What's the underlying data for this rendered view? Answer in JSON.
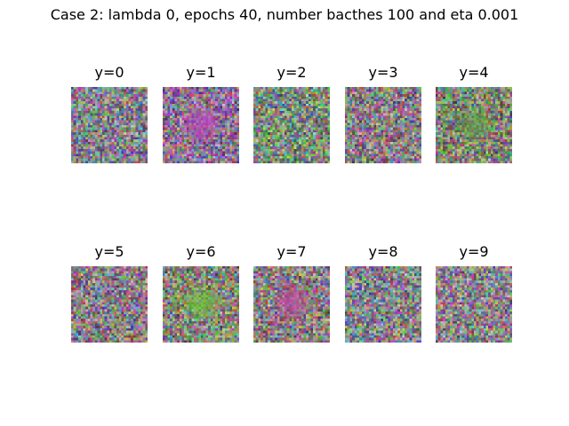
{
  "figure": {
    "title": "Case 2: lambda 0, epochs 40, number bacthes 100 and eta 0.001"
  },
  "panels": [
    {
      "label": "y=0",
      "tint": "#8a8a9a",
      "blob": null
    },
    {
      "label": "y=1",
      "tint": "#a060b0",
      "blob": "#c040c0"
    },
    {
      "label": "y=2",
      "tint": "#70a070",
      "blob": null
    },
    {
      "label": "y=3",
      "tint": "#9a8090",
      "blob": null
    },
    {
      "label": "y=4",
      "tint": "#708860",
      "blob": "#60a040"
    },
    {
      "label": "y=5",
      "tint": "#9a8090",
      "blob": null
    },
    {
      "label": "y=6",
      "tint": "#8a9070",
      "blob": "#70d030"
    },
    {
      "label": "y=7",
      "tint": "#a07880",
      "blob": "#c050a0"
    },
    {
      "label": "y=8",
      "tint": "#8a8a9a",
      "blob": null
    },
    {
      "label": "y=9",
      "tint": "#a08898",
      "blob": null
    }
  ]
}
